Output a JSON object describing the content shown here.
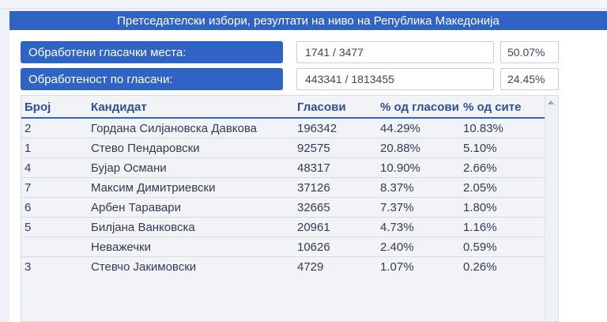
{
  "header": {
    "title": "Претседателски избори, резултати на ниво на Република Македонија"
  },
  "stats": [
    {
      "label": "Обработени гласачки места:",
      "value": "1741 / 3477",
      "percent": "50.07%"
    },
    {
      "label": "Обработеност по гласачи:",
      "value": "443341 / 1813455",
      "percent": "24.45%"
    }
  ],
  "table": {
    "columns": [
      "Број",
      "Кандидат",
      "Гласови",
      "% од гласови",
      "% од сите"
    ],
    "rows": [
      {
        "number": "2",
        "candidate": "Гордана Силјановска Давкова",
        "votes": "196342",
        "pct_votes": "44.29%",
        "pct_all": "10.83%"
      },
      {
        "number": "1",
        "candidate": "Стево Пендаровски",
        "votes": "92575",
        "pct_votes": "20.88%",
        "pct_all": "5.10%"
      },
      {
        "number": "4",
        "candidate": "Бујар Османи",
        "votes": "48317",
        "pct_votes": "10.90%",
        "pct_all": "2.66%"
      },
      {
        "number": "7",
        "candidate": "Максим Димитриевски",
        "votes": "37126",
        "pct_votes": "8.37%",
        "pct_all": "2.05%"
      },
      {
        "number": "6",
        "candidate": "Арбен Таравари",
        "votes": "32665",
        "pct_votes": "7.37%",
        "pct_all": "1.80%"
      },
      {
        "number": "5",
        "candidate": "Билјана Ванковска",
        "votes": "20961",
        "pct_votes": "4.73%",
        "pct_all": "1.16%"
      },
      {
        "number": "",
        "candidate": "Неважечки",
        "votes": "10626",
        "pct_votes": "2.40%",
        "pct_all": "0.59%"
      },
      {
        "number": "3",
        "candidate": "Стевчо Јакимовски",
        "votes": "4729",
        "pct_votes": "1.07%",
        "pct_all": "0.26%"
      }
    ]
  },
  "colors": {
    "accent": "#2f64c4",
    "panel": "#ffffff",
    "background": "#eef2f7"
  },
  "icons": {
    "scroll_up": "chevron-up-icon"
  }
}
